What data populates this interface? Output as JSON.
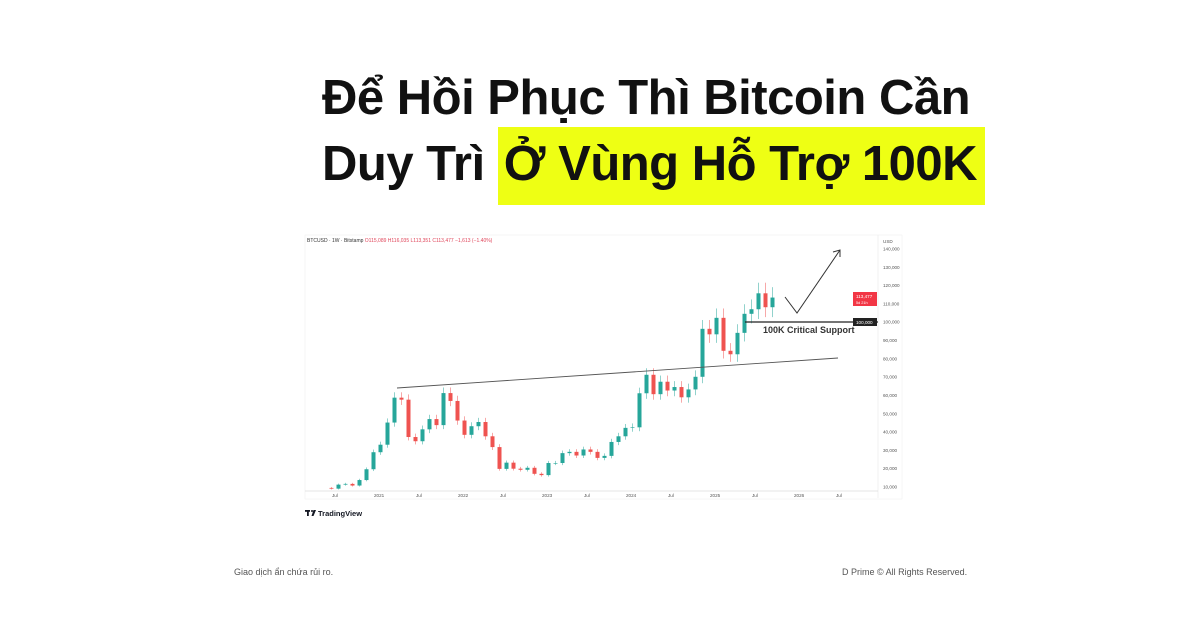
{
  "title": {
    "line1": "Để Hồi Phục Thì Bitcoin Cần",
    "line2_plain": "Duy Trì ",
    "line2_highlight": "Ở Vùng Hỗ Trợ 100K",
    "highlight_color": "#eeff14"
  },
  "footer": {
    "disclaimer": "Giao dịch ẩn chứa rủi ro.",
    "copyright": "D Prime © All Rights Reserved."
  },
  "chart_data": {
    "type": "candlestick",
    "symbol": "BTCUSD · 1W · Bitstamp",
    "ohlc_header": {
      "o": "O115,089",
      "h": "H116,035",
      "l": "L113,351",
      "c": "C113,477",
      "change": "−1,613 (−1.40%)"
    },
    "currency": "USD",
    "last_price": "113,477",
    "countdown": "5d 21h",
    "support_price_label": "100,000",
    "annotation": "100K Critical Support",
    "ylim": [
      10000,
      140000
    ],
    "y_ticks": [
      "140,000",
      "130,000",
      "120,000",
      "110,000",
      "100,000",
      "90,000",
      "80,000",
      "70,000",
      "60,000",
      "50,000",
      "40,000",
      "30,000",
      "20,000",
      "10,000"
    ],
    "x_ticks": [
      "Jul",
      "2021",
      "Jul",
      "2022",
      "Jul",
      "2023",
      "Jul",
      "2024",
      "Jul",
      "2025",
      "Jul",
      "2026",
      "Jul"
    ],
    "start_month": "2020-05",
    "monthly_close": [
      9500,
      9100,
      11300,
      11700,
      10800,
      13800,
      19700,
      29000,
      33100,
      45200,
      58800,
      57700,
      37300,
      35000,
      41500,
      47100,
      43800,
      61300,
      57000,
      46300,
      38500,
      43200,
      45500,
      37700,
      31800,
      19900,
      23300,
      20000,
      19400,
      20500,
      17200,
      16500,
      23100,
      23100,
      28500,
      29200,
      27200,
      30500,
      29200,
      25900,
      27000,
      34600,
      37700,
      42300,
      42600,
      61200,
      71300,
      60700,
      67500,
      62700,
      64600,
      59000,
      63300,
      70200,
      96400,
      93400,
      102400,
      84400,
      82500,
      94200,
      104600,
      107100,
      115800,
      108200,
      113477
    ],
    "colors": {
      "up": "#26a69a",
      "down": "#ef5350",
      "price_tag": "#f23645"
    },
    "brand": "TradingView"
  }
}
